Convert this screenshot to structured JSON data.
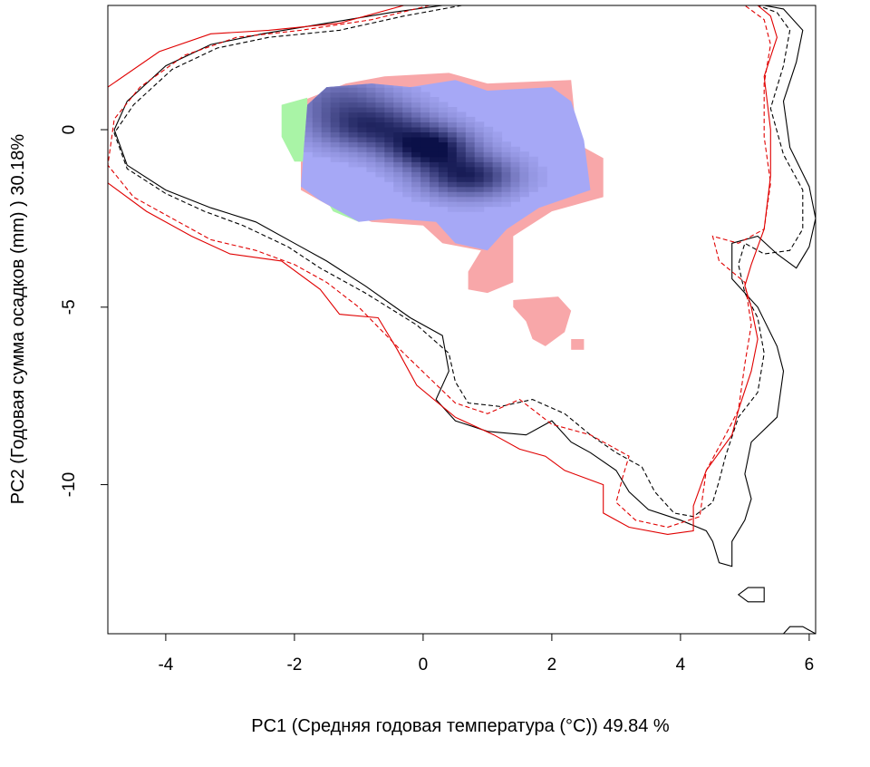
{
  "chart_data": {
    "type": "scatter",
    "title": "",
    "xlabel": "PC1 (Средняя годовая температура (°C)) 49.84 %",
    "ylabel": "PC2 (Годовая сумма осадков  (mm) ) 30.18%",
    "xlim": [
      -4.9,
      6.1
    ],
    "ylim": [
      -14.2,
      3.5
    ],
    "x_ticks": [
      -4,
      -2,
      0,
      2,
      4,
      6
    ],
    "y_ticks": [
      -10,
      -5,
      0
    ],
    "grid": false,
    "legend": "none",
    "colors": {
      "overlap": "#a6a8f6",
      "density_dark": "#0b1048",
      "only_red": "#f8a7a9",
      "only_green": "#a9f4a6",
      "contour_black": "#000000",
      "contour_red": "#e00000"
    },
    "density_peaks": [
      {
        "x": -0.8,
        "y": 0.1,
        "weight": 0.75,
        "sx": 0.6,
        "sy": 0.45
      },
      {
        "x": 0.1,
        "y": -0.5,
        "weight": 1.0,
        "sx": 0.45,
        "sy": 0.4
      },
      {
        "x": 0.7,
        "y": -1.3,
        "weight": 0.85,
        "sx": 0.5,
        "sy": 0.4
      },
      {
        "x": -1.3,
        "y": 0.9,
        "weight": 0.4,
        "sx": 0.55,
        "sy": 0.5
      }
    ],
    "regions": [
      {
        "name": "overlap",
        "color": "#a6a8f6",
        "points": [
          [
            -1.8,
            0.7
          ],
          [
            -1.5,
            1.2
          ],
          [
            -0.8,
            1.3
          ],
          [
            -0.2,
            1.2
          ],
          [
            0.5,
            1.4
          ],
          [
            1.0,
            1.1
          ],
          [
            2.0,
            1.2
          ],
          [
            2.3,
            0.8
          ],
          [
            2.5,
            -0.3
          ],
          [
            2.6,
            -1.7
          ],
          [
            1.8,
            -2.2
          ],
          [
            1.3,
            -2.8
          ],
          [
            1.0,
            -3.4
          ],
          [
            0.5,
            -3.2
          ],
          [
            0.2,
            -2.6
          ],
          [
            -0.5,
            -2.5
          ],
          [
            -1.0,
            -2.6
          ],
          [
            -1.6,
            -2.0
          ],
          [
            -1.9,
            -1.6
          ]
        ]
      },
      {
        "name": "only_red",
        "color": "#f8a7a9",
        "points": [
          [
            -1.9,
            0.8
          ],
          [
            -1.2,
            1.3
          ],
          [
            -0.6,
            1.5
          ],
          [
            0.4,
            1.6
          ],
          [
            1.0,
            1.3
          ],
          [
            2.3,
            1.4
          ],
          [
            2.4,
            -0.4
          ],
          [
            2.8,
            -0.8
          ],
          [
            2.8,
            -1.9
          ],
          [
            2.0,
            -2.3
          ],
          [
            1.4,
            -3.0
          ],
          [
            1.4,
            -4.3
          ],
          [
            1.0,
            -4.6
          ],
          [
            0.7,
            -4.5
          ],
          [
            0.7,
            -4.0
          ],
          [
            0.9,
            -3.4
          ],
          [
            0.3,
            -3.2
          ],
          [
            0.0,
            -2.7
          ],
          [
            -0.8,
            -2.6
          ],
          [
            -1.4,
            -2.2
          ],
          [
            -1.9,
            -1.7
          ]
        ]
      },
      {
        "name": "only_red",
        "color": "#f8a7a9",
        "points": [
          [
            1.4,
            -4.8
          ],
          [
            2.1,
            -4.7
          ],
          [
            2.3,
            -5.1
          ],
          [
            2.2,
            -5.7
          ],
          [
            1.9,
            -6.1
          ],
          [
            1.7,
            -5.9
          ],
          [
            1.6,
            -5.4
          ],
          [
            1.4,
            -5.0
          ]
        ]
      },
      {
        "name": "only_red",
        "color": "#f8a7a9",
        "points": [
          [
            2.3,
            -5.9
          ],
          [
            2.5,
            -5.9
          ],
          [
            2.5,
            -6.2
          ],
          [
            2.3,
            -6.2
          ]
        ]
      },
      {
        "name": "only_green",
        "color": "#a9f4a6",
        "points": [
          [
            -2.2,
            0.7
          ],
          [
            -1.8,
            0.9
          ],
          [
            -1.8,
            -0.9
          ],
          [
            -2.0,
            -0.9
          ],
          [
            -2.2,
            -0.2
          ]
        ]
      },
      {
        "name": "only_green",
        "color": "#a9f4a6",
        "points": [
          [
            -1.6,
            -1.7
          ],
          [
            -1.2,
            -1.5
          ],
          [
            -0.8,
            -2.3
          ],
          [
            -1.0,
            -2.6
          ],
          [
            -1.4,
            -2.3
          ]
        ]
      }
    ],
    "contours": [
      {
        "name": "black-solid",
        "color": "#000000",
        "dash": "",
        "closed": false,
        "points": [
          [
            0.3,
            3.5
          ],
          [
            -0.5,
            3.3
          ],
          [
            -1.5,
            3.0
          ],
          [
            -2.5,
            2.7
          ],
          [
            -3.3,
            2.4
          ],
          [
            -4.0,
            1.8
          ],
          [
            -4.6,
            0.8
          ],
          [
            -4.8,
            0.0
          ],
          [
            -4.6,
            -1.0
          ],
          [
            -4.0,
            -1.7
          ],
          [
            -3.3,
            -2.2
          ],
          [
            -2.6,
            -2.6
          ],
          [
            -2.0,
            -3.2
          ],
          [
            -1.5,
            -3.7
          ],
          [
            -0.9,
            -4.4
          ],
          [
            -0.2,
            -5.3
          ],
          [
            0.3,
            -5.8
          ],
          [
            0.4,
            -6.8
          ],
          [
            0.2,
            -7.6
          ],
          [
            0.5,
            -8.2
          ],
          [
            1.0,
            -8.5
          ],
          [
            1.6,
            -8.6
          ],
          [
            2.0,
            -8.2
          ],
          [
            2.3,
            -8.8
          ],
          [
            2.6,
            -9.1
          ],
          [
            3.0,
            -9.6
          ],
          [
            3.2,
            -10.2
          ],
          [
            3.5,
            -10.7
          ],
          [
            4.0,
            -11.0
          ],
          [
            4.4,
            -11.3
          ],
          [
            4.5,
            -11.6
          ],
          [
            4.6,
            -12.2
          ],
          [
            4.8,
            -12.3
          ],
          [
            4.8,
            -11.6
          ],
          [
            5.0,
            -11.0
          ],
          [
            5.1,
            -10.4
          ],
          [
            5.0,
            -9.7
          ],
          [
            5.1,
            -8.8
          ],
          [
            5.5,
            -8.1
          ],
          [
            5.6,
            -6.8
          ],
          [
            5.5,
            -6.1
          ],
          [
            5.2,
            -5.0
          ],
          [
            4.8,
            -4.2
          ],
          [
            4.8,
            -3.2
          ],
          [
            5.2,
            -3.0
          ],
          [
            5.5,
            -3.5
          ],
          [
            5.8,
            -3.9
          ],
          [
            6.0,
            -3.3
          ],
          [
            6.1,
            -2.5
          ],
          [
            6.0,
            -1.6
          ],
          [
            5.7,
            -0.5
          ],
          [
            5.6,
            0.8
          ],
          [
            5.8,
            1.9
          ],
          [
            5.9,
            2.8
          ],
          [
            5.6,
            3.4
          ],
          [
            5.3,
            3.5
          ]
        ]
      },
      {
        "name": "black-dashed",
        "color": "#000000",
        "dash": "5 3",
        "closed": false,
        "points": [
          [
            0.6,
            3.5
          ],
          [
            -0.3,
            3.2
          ],
          [
            -1.3,
            2.8
          ],
          [
            -2.4,
            2.6
          ],
          [
            -3.2,
            2.3
          ],
          [
            -3.9,
            1.7
          ],
          [
            -4.5,
            0.7
          ],
          [
            -4.8,
            -0.1
          ],
          [
            -4.6,
            -1.1
          ],
          [
            -4.0,
            -1.8
          ],
          [
            -3.4,
            -2.3
          ],
          [
            -2.8,
            -2.7
          ],
          [
            -2.1,
            -3.3
          ],
          [
            -1.6,
            -3.9
          ],
          [
            -0.9,
            -4.6
          ],
          [
            -0.1,
            -5.5
          ],
          [
            0.4,
            -6.3
          ],
          [
            0.5,
            -7.1
          ],
          [
            0.7,
            -7.7
          ],
          [
            1.2,
            -7.8
          ],
          [
            1.7,
            -7.6
          ],
          [
            2.2,
            -8.0
          ],
          [
            2.6,
            -8.6
          ],
          [
            3.0,
            -9.1
          ],
          [
            3.4,
            -9.5
          ],
          [
            3.6,
            -10.2
          ],
          [
            3.9,
            -10.8
          ],
          [
            4.2,
            -10.9
          ],
          [
            4.5,
            -10.5
          ],
          [
            4.6,
            -9.9
          ],
          [
            4.7,
            -9.2
          ],
          [
            4.9,
            -8.1
          ],
          [
            5.2,
            -7.4
          ],
          [
            5.3,
            -6.3
          ],
          [
            5.2,
            -5.3
          ],
          [
            5.0,
            -4.6
          ],
          [
            4.9,
            -3.8
          ],
          [
            5.0,
            -3.2
          ],
          [
            5.3,
            -3.5
          ],
          [
            5.7,
            -3.4
          ],
          [
            5.9,
            -2.8
          ],
          [
            5.9,
            -1.7
          ],
          [
            5.6,
            -0.7
          ],
          [
            5.4,
            0.6
          ],
          [
            5.6,
            1.8
          ],
          [
            5.7,
            2.8
          ],
          [
            5.5,
            3.3
          ],
          [
            5.2,
            3.5
          ]
        ]
      },
      {
        "name": "red-solid",
        "color": "#e00000",
        "dash": "",
        "closed": false,
        "points": [
          [
            -0.3,
            3.5
          ],
          [
            -1.3,
            3.0
          ],
          [
            -2.4,
            2.8
          ],
          [
            -3.3,
            2.7
          ],
          [
            -4.1,
            2.2
          ],
          [
            -4.9,
            1.2
          ],
          [
            -4.9,
            -1.5
          ],
          [
            -4.3,
            -2.3
          ],
          [
            -3.6,
            -3.0
          ],
          [
            -3.0,
            -3.5
          ],
          [
            -2.2,
            -3.7
          ],
          [
            -1.6,
            -4.5
          ],
          [
            -1.3,
            -5.2
          ],
          [
            -0.7,
            -5.3
          ],
          [
            -0.4,
            -6.2
          ],
          [
            -0.1,
            -7.2
          ],
          [
            0.5,
            -8.1
          ],
          [
            1.1,
            -8.6
          ],
          [
            1.5,
            -9.0
          ],
          [
            1.9,
            -9.2
          ],
          [
            2.2,
            -9.6
          ],
          [
            2.8,
            -10.0
          ],
          [
            2.8,
            -10.8
          ],
          [
            3.2,
            -11.2
          ],
          [
            3.8,
            -11.4
          ],
          [
            4.2,
            -11.3
          ],
          [
            4.2,
            -10.6
          ],
          [
            4.4,
            -9.6
          ],
          [
            4.8,
            -8.6
          ],
          [
            4.9,
            -7.9
          ],
          [
            5.1,
            -6.8
          ],
          [
            5.2,
            -5.9
          ],
          [
            5.1,
            -5.0
          ],
          [
            5.0,
            -4.4
          ],
          [
            5.1,
            -3.8
          ],
          [
            5.3,
            -2.8
          ],
          [
            5.4,
            -1.3
          ],
          [
            5.4,
            0.0
          ],
          [
            5.3,
            1.5
          ],
          [
            5.5,
            2.6
          ],
          [
            5.4,
            3.2
          ],
          [
            5.2,
            3.5
          ]
        ]
      },
      {
        "name": "red-dashed",
        "color": "#e00000",
        "dash": "5 3",
        "closed": false,
        "points": [
          [
            0.1,
            3.5
          ],
          [
            -0.8,
            3.1
          ],
          [
            -1.9,
            2.8
          ],
          [
            -2.9,
            2.6
          ],
          [
            -3.7,
            2.1
          ],
          [
            -4.4,
            1.2
          ],
          [
            -4.8,
            0.3
          ],
          [
            -4.9,
            -1.0
          ],
          [
            -4.5,
            -1.9
          ],
          [
            -3.9,
            -2.5
          ],
          [
            -3.3,
            -3.1
          ],
          [
            -2.6,
            -3.4
          ],
          [
            -2.0,
            -3.8
          ],
          [
            -1.5,
            -4.3
          ],
          [
            -1.0,
            -5.0
          ],
          [
            -0.3,
            -6.3
          ],
          [
            0.1,
            -7.0
          ],
          [
            0.5,
            -7.7
          ],
          [
            1.0,
            -8.0
          ],
          [
            1.5,
            -7.6
          ],
          [
            2.0,
            -8.3
          ],
          [
            2.6,
            -8.6
          ],
          [
            3.2,
            -9.2
          ],
          [
            3.1,
            -9.8
          ],
          [
            3.0,
            -10.5
          ],
          [
            3.3,
            -11.0
          ],
          [
            3.8,
            -11.2
          ],
          [
            4.3,
            -10.9
          ],
          [
            4.4,
            -9.6
          ],
          [
            4.7,
            -8.6
          ],
          [
            4.9,
            -7.9
          ],
          [
            5.0,
            -6.6
          ],
          [
            5.1,
            -5.5
          ],
          [
            5.0,
            -4.3
          ],
          [
            4.6,
            -3.7
          ],
          [
            4.5,
            -3.0
          ],
          [
            4.9,
            -3.2
          ],
          [
            5.3,
            -2.8
          ],
          [
            5.4,
            -1.5
          ],
          [
            5.3,
            -0.2
          ],
          [
            5.3,
            1.3
          ],
          [
            5.4,
            2.4
          ],
          [
            5.3,
            3.1
          ],
          [
            5.0,
            3.5
          ]
        ]
      },
      {
        "name": "black-solid-small",
        "color": "#000000",
        "dash": "",
        "closed": true,
        "points": [
          [
            4.9,
            -13.1
          ],
          [
            5.05,
            -12.9
          ],
          [
            5.3,
            -12.9
          ],
          [
            5.3,
            -13.3
          ],
          [
            5.05,
            -13.3
          ]
        ]
      },
      {
        "name": "black-solid-corner",
        "color": "#000000",
        "dash": "",
        "closed": false,
        "points": [
          [
            5.6,
            -14.2
          ],
          [
            5.7,
            -14.0
          ],
          [
            5.9,
            -14.0
          ],
          [
            6.0,
            -14.1
          ],
          [
            6.1,
            -14.2
          ]
        ]
      }
    ]
  }
}
